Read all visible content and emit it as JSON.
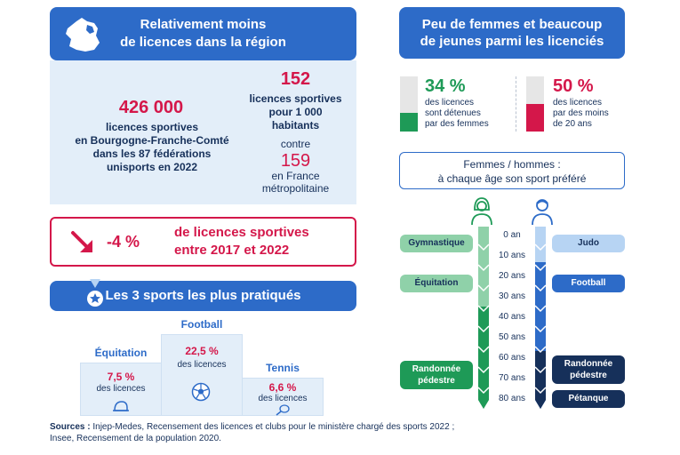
{
  "left_header": {
    "line1": "Relativement moins",
    "line2": "de licences dans la région"
  },
  "stats": {
    "licences_count": "426 000",
    "licences_text": [
      "licences sportives",
      "en Bourgogne-Franche-Comté",
      "dans les 87 fédérations",
      "unisports en 2022"
    ],
    "per_1000_region": "152",
    "per_1000_text": [
      "licences sportives",
      "pour 1 000",
      "habitants"
    ],
    "contre": "contre",
    "per_1000_france": "159",
    "france_text": [
      "en France",
      "métropolitaine"
    ]
  },
  "evolution": {
    "pct": "-4 %",
    "line1": "de licences sportives",
    "line2": "entre 2017 et 2022"
  },
  "sports_header": "Les 3 sports les plus pratiqués",
  "podium": [
    {
      "name": "Équitation",
      "pct": "7,5 %",
      "value": 7.5,
      "sub": "des licences",
      "icon": "horse-helmet-icon"
    },
    {
      "name": "Football",
      "pct": "22,5 %",
      "value": 22.5,
      "sub": "des licences",
      "icon": "soccer-ball-icon"
    },
    {
      "name": "Tennis",
      "pct": "6,6 %",
      "value": 6.6,
      "sub": "des licences",
      "icon": "tennis-racket-icon"
    }
  ],
  "right_header": {
    "line1": "Peu de femmes et beaucoup",
    "line2": "de jeunes parmi les licenciés"
  },
  "women": {
    "pct": "34 %",
    "value": 34,
    "text": [
      "des licences",
      "sont détenues",
      "par des femmes"
    ],
    "color": "#1e9a57"
  },
  "young": {
    "pct": "50 %",
    "value": 50,
    "text": [
      "des licences",
      "par des moins",
      "de 20 ans"
    ],
    "color": "#d4174a"
  },
  "age_title": {
    "line1": "Femmes / hommes :",
    "line2": "à chaque âge son sport préféré"
  },
  "ages": [
    "0 an",
    "10 ans",
    "20 ans",
    "30 ans",
    "40 ans",
    "50 ans",
    "60 ans",
    "70 ans",
    "80 ans"
  ],
  "women_sports": {
    "gym": "Gymnastique",
    "equi": "Équitation",
    "rando": [
      "Randonnée",
      "pédestre"
    ]
  },
  "men_sports": {
    "judo": "Judo",
    "foot": "Football",
    "rando": [
      "Randonnée",
      "pédestre"
    ],
    "petanque": "Pétanque"
  },
  "sources": {
    "label": "Sources :",
    "line1": " Injep-Medes, Recensement des licences et clubs pour le ministère chargé des sports 2022 ;",
    "line2": "Insee, Recensement de la population 2020."
  },
  "colors": {
    "blue": "#2d6bc8",
    "crimson": "#d4174a",
    "green": "#1e9a57",
    "navy": "#16305a",
    "light_blue": "#e3eef9"
  }
}
